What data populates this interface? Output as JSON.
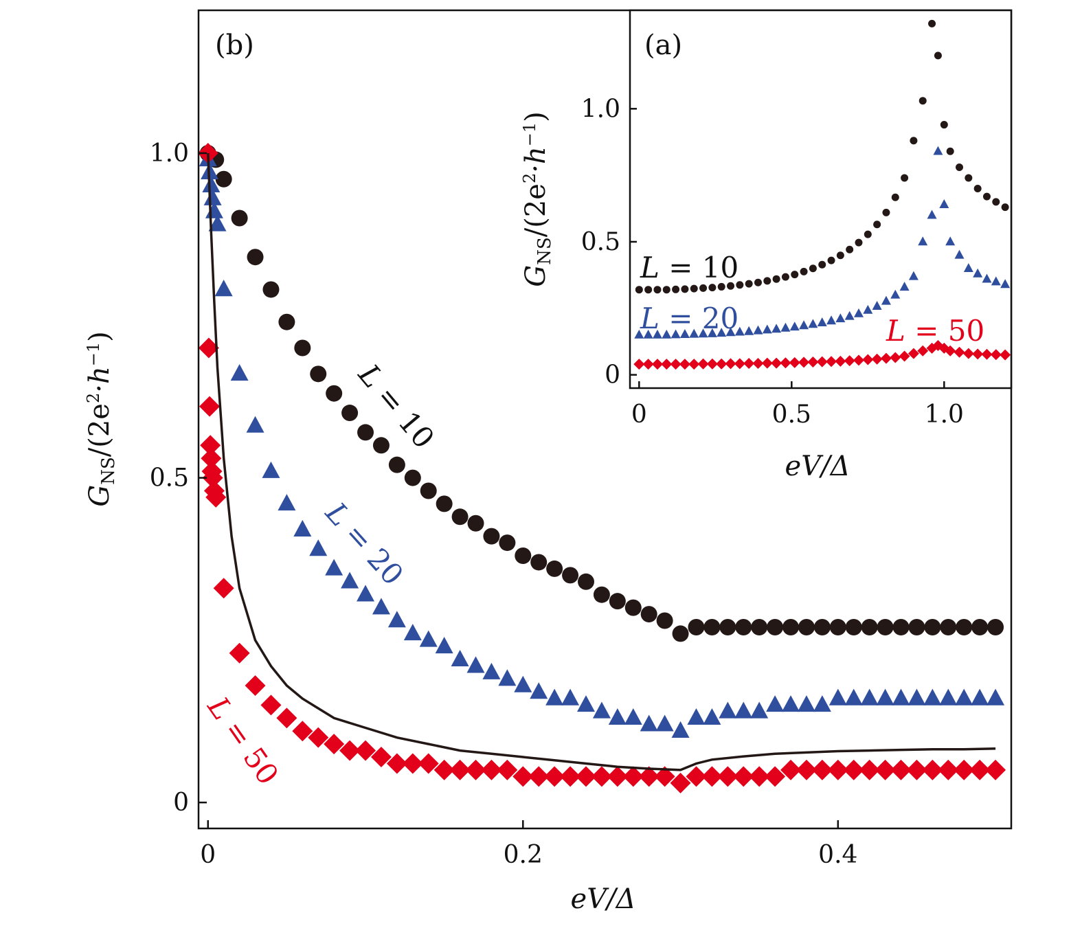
{
  "colors": {
    "L10": "#231815",
    "L20": "#2f4f9e",
    "L50": "#e2001a",
    "axis": "#111111"
  },
  "chart_data": [
    {
      "id": "main",
      "panel_label": "(b)",
      "type": "scatter",
      "xlabel": "eV/Δ",
      "ylabel": "G_NS/(2e²·h⁻¹)",
      "ylabel_parts": {
        "g": "G",
        "sub": "NS",
        "paren": "/(2e",
        "sup2": "2",
        "dot_h": "·h",
        "supm1": "−1",
        "close": ")"
      },
      "xlim": [
        -0.006,
        0.51
      ],
      "ylim": [
        -0.04,
        1.22
      ],
      "xticks": [
        0,
        0.2,
        0.4
      ],
      "xtick_labels": [
        "0",
        "0.2",
        "0.4"
      ],
      "yticks": [
        0,
        0.5,
        1.0
      ],
      "ytick_labels": [
        "0",
        "0.5",
        "1.0"
      ],
      "series": [
        {
          "name": "L = 10",
          "label_name": "L",
          "label_eq": "= 10",
          "marker": "circle",
          "color_key": "L10",
          "x": [
            0,
            0.005,
            0.01,
            0.02,
            0.03,
            0.04,
            0.05,
            0.06,
            0.07,
            0.08,
            0.09,
            0.1,
            0.11,
            0.12,
            0.13,
            0.14,
            0.15,
            0.16,
            0.17,
            0.18,
            0.19,
            0.2,
            0.21,
            0.22,
            0.23,
            0.24,
            0.25,
            0.26,
            0.27,
            0.28,
            0.29,
            0.3,
            0.31,
            0.32,
            0.33,
            0.34,
            0.35,
            0.36,
            0.37,
            0.38,
            0.39,
            0.4,
            0.41,
            0.42,
            0.43,
            0.44,
            0.45,
            0.46,
            0.47,
            0.48,
            0.49,
            0.5
          ],
          "y": [
            1.0,
            0.99,
            0.96,
            0.9,
            0.84,
            0.79,
            0.74,
            0.7,
            0.66,
            0.63,
            0.6,
            0.57,
            0.55,
            0.52,
            0.5,
            0.48,
            0.46,
            0.44,
            0.43,
            0.41,
            0.4,
            0.38,
            0.37,
            0.36,
            0.35,
            0.34,
            0.32,
            0.31,
            0.3,
            0.29,
            0.28,
            0.26,
            0.27,
            0.27,
            0.27,
            0.27,
            0.27,
            0.27,
            0.27,
            0.27,
            0.27,
            0.27,
            0.27,
            0.27,
            0.27,
            0.27,
            0.27,
            0.27,
            0.27,
            0.27,
            0.27,
            0.27
          ]
        },
        {
          "name": "L = 20",
          "label_name": "L",
          "label_eq": "= 20",
          "marker": "triangle",
          "color_key": "L20",
          "x": [
            0,
            0.001,
            0.002,
            0.003,
            0.004,
            0.006,
            0.01,
            0.02,
            0.03,
            0.04,
            0.05,
            0.06,
            0.07,
            0.08,
            0.09,
            0.1,
            0.11,
            0.12,
            0.13,
            0.14,
            0.15,
            0.16,
            0.17,
            0.18,
            0.19,
            0.2,
            0.21,
            0.22,
            0.23,
            0.24,
            0.25,
            0.26,
            0.27,
            0.28,
            0.29,
            0.3,
            0.31,
            0.32,
            0.33,
            0.34,
            0.35,
            0.36,
            0.37,
            0.38,
            0.39,
            0.4,
            0.41,
            0.42,
            0.43,
            0.44,
            0.45,
            0.46,
            0.47,
            0.48,
            0.49,
            0.5
          ],
          "y": [
            0.99,
            0.97,
            0.95,
            0.93,
            0.91,
            0.89,
            0.79,
            0.66,
            0.58,
            0.51,
            0.46,
            0.42,
            0.39,
            0.36,
            0.34,
            0.32,
            0.3,
            0.28,
            0.26,
            0.25,
            0.24,
            0.22,
            0.21,
            0.2,
            0.19,
            0.18,
            0.17,
            0.16,
            0.16,
            0.15,
            0.14,
            0.13,
            0.13,
            0.12,
            0.12,
            0.11,
            0.13,
            0.13,
            0.14,
            0.14,
            0.14,
            0.15,
            0.15,
            0.15,
            0.15,
            0.16,
            0.16,
            0.16,
            0.16,
            0.16,
            0.16,
            0.16,
            0.16,
            0.16,
            0.16,
            0.16
          ]
        },
        {
          "name": "L = 50",
          "label_name": "L",
          "label_eq": "= 50",
          "marker": "diamond",
          "color_key": "L50",
          "x": [
            0,
            0.0005,
            0.001,
            0.0015,
            0.002,
            0.0025,
            0.003,
            0.004,
            0.005,
            0.01,
            0.02,
            0.03,
            0.04,
            0.05,
            0.06,
            0.07,
            0.08,
            0.09,
            0.1,
            0.11,
            0.12,
            0.13,
            0.14,
            0.15,
            0.16,
            0.17,
            0.18,
            0.19,
            0.2,
            0.21,
            0.22,
            0.23,
            0.24,
            0.25,
            0.26,
            0.27,
            0.28,
            0.29,
            0.3,
            0.31,
            0.32,
            0.33,
            0.34,
            0.35,
            0.36,
            0.37,
            0.38,
            0.39,
            0.4,
            0.41,
            0.42,
            0.43,
            0.44,
            0.45,
            0.46,
            0.47,
            0.48,
            0.49,
            0.5
          ],
          "y": [
            1.0,
            0.7,
            0.61,
            0.55,
            0.53,
            0.51,
            0.5,
            0.48,
            0.47,
            0.33,
            0.23,
            0.18,
            0.15,
            0.13,
            0.11,
            0.1,
            0.09,
            0.08,
            0.08,
            0.07,
            0.06,
            0.06,
            0.06,
            0.05,
            0.05,
            0.05,
            0.05,
            0.05,
            0.04,
            0.04,
            0.04,
            0.04,
            0.04,
            0.04,
            0.04,
            0.04,
            0.04,
            0.04,
            0.03,
            0.04,
            0.04,
            0.04,
            0.04,
            0.04,
            0.04,
            0.05,
            0.05,
            0.05,
            0.05,
            0.05,
            0.05,
            0.05,
            0.05,
            0.05,
            0.05,
            0.05,
            0.05,
            0.05,
            0.05
          ]
        },
        {
          "name": "curve",
          "marker": "line",
          "color_key": "L10",
          "x": [
            0,
            0.002,
            0.004,
            0.006,
            0.008,
            0.01,
            0.015,
            0.02,
            0.03,
            0.04,
            0.05,
            0.06,
            0.07,
            0.08,
            0.1,
            0.12,
            0.14,
            0.16,
            0.18,
            0.2,
            0.22,
            0.24,
            0.26,
            0.28,
            0.3,
            0.31,
            0.32,
            0.34,
            0.36,
            0.38,
            0.4,
            0.42,
            0.44,
            0.46,
            0.48,
            0.5
          ],
          "y": [
            1.0,
            0.88,
            0.77,
            0.67,
            0.6,
            0.53,
            0.41,
            0.33,
            0.25,
            0.21,
            0.18,
            0.16,
            0.145,
            0.13,
            0.115,
            0.1,
            0.09,
            0.08,
            0.075,
            0.07,
            0.065,
            0.06,
            0.055,
            0.052,
            0.05,
            0.06,
            0.066,
            0.071,
            0.075,
            0.077,
            0.079,
            0.08,
            0.081,
            0.082,
            0.082,
            0.083
          ]
        }
      ]
    },
    {
      "id": "inset",
      "panel_label": "(a)",
      "type": "scatter",
      "xlabel": "eV/Δ",
      "ylabel": "G_NS/(2e²·h⁻¹)",
      "ylabel_parts": {
        "g": "G",
        "sub": "NS",
        "paren": "/(2e",
        "sup2": "2",
        "dot_h": "·h",
        "supm1": "−1",
        "close": ")"
      },
      "xlim": [
        -0.03,
        1.22
      ],
      "ylim": [
        -0.05,
        1.37
      ],
      "xticks": [
        0,
        0.5,
        1.0
      ],
      "xtick_labels": [
        "0",
        "0.5",
        "1.0"
      ],
      "yticks": [
        0,
        0.5,
        1.0
      ],
      "ytick_labels": [
        "0",
        "0.5",
        "1.0"
      ],
      "series": [
        {
          "name": "L = 10",
          "label_name": "L",
          "label_eq": "= 10",
          "marker": "circle",
          "color_key": "L10",
          "x": [
            0,
            0.03,
            0.06,
            0.09,
            0.12,
            0.15,
            0.18,
            0.21,
            0.24,
            0.27,
            0.3,
            0.33,
            0.36,
            0.39,
            0.42,
            0.45,
            0.48,
            0.51,
            0.54,
            0.57,
            0.6,
            0.63,
            0.66,
            0.69,
            0.72,
            0.75,
            0.78,
            0.81,
            0.84,
            0.87,
            0.9,
            0.93,
            0.96,
            0.98,
            1.0,
            1.02,
            1.05,
            1.08,
            1.11,
            1.14,
            1.17,
            1.2
          ],
          "y": [
            0.32,
            0.32,
            0.32,
            0.32,
            0.321,
            0.322,
            0.324,
            0.326,
            0.328,
            0.331,
            0.334,
            0.338,
            0.342,
            0.347,
            0.353,
            0.36,
            0.368,
            0.377,
            0.388,
            0.4,
            0.414,
            0.43,
            0.449,
            0.471,
            0.497,
            0.528,
            0.565,
            0.61,
            0.667,
            0.74,
            0.88,
            1.03,
            1.32,
            1.2,
            0.94,
            0.84,
            0.78,
            0.74,
            0.7,
            0.67,
            0.65,
            0.63
          ]
        },
        {
          "name": "L = 20",
          "label_name": "L",
          "label_eq": "= 20",
          "marker": "triangle",
          "color_key": "L20",
          "x": [
            0,
            0.03,
            0.06,
            0.09,
            0.12,
            0.15,
            0.18,
            0.21,
            0.24,
            0.27,
            0.3,
            0.33,
            0.36,
            0.39,
            0.42,
            0.45,
            0.48,
            0.51,
            0.54,
            0.57,
            0.6,
            0.63,
            0.66,
            0.69,
            0.72,
            0.75,
            0.78,
            0.81,
            0.84,
            0.87,
            0.9,
            0.93,
            0.96,
            0.98,
            1.0,
            1.02,
            1.05,
            1.08,
            1.11,
            1.14,
            1.17,
            1.2
          ],
          "y": [
            0.15,
            0.15,
            0.15,
            0.15,
            0.151,
            0.152,
            0.153,
            0.154,
            0.155,
            0.157,
            0.159,
            0.161,
            0.163,
            0.166,
            0.169,
            0.172,
            0.176,
            0.18,
            0.185,
            0.19,
            0.196,
            0.203,
            0.211,
            0.22,
            0.23,
            0.243,
            0.258,
            0.277,
            0.3,
            0.33,
            0.37,
            0.5,
            0.6,
            0.84,
            0.64,
            0.5,
            0.45,
            0.4,
            0.38,
            0.36,
            0.35,
            0.34
          ]
        },
        {
          "name": "L = 50",
          "label_name": "L",
          "label_eq": "= 50",
          "marker": "diamond",
          "color_key": "L50",
          "x": [
            0,
            0.03,
            0.06,
            0.09,
            0.12,
            0.15,
            0.18,
            0.21,
            0.24,
            0.27,
            0.3,
            0.33,
            0.36,
            0.39,
            0.42,
            0.45,
            0.48,
            0.51,
            0.54,
            0.57,
            0.6,
            0.63,
            0.66,
            0.69,
            0.72,
            0.75,
            0.78,
            0.81,
            0.84,
            0.87,
            0.9,
            0.93,
            0.96,
            0.98,
            1.0,
            1.02,
            1.05,
            1.08,
            1.11,
            1.14,
            1.17,
            1.2
          ],
          "y": [
            0.04,
            0.04,
            0.04,
            0.04,
            0.04,
            0.04,
            0.04,
            0.041,
            0.041,
            0.041,
            0.042,
            0.042,
            0.043,
            0.043,
            0.044,
            0.044,
            0.045,
            0.046,
            0.047,
            0.048,
            0.049,
            0.05,
            0.051,
            0.053,
            0.055,
            0.057,
            0.059,
            0.062,
            0.065,
            0.07,
            0.08,
            0.09,
            0.1,
            0.11,
            0.1,
            0.09,
            0.085,
            0.08,
            0.078,
            0.077,
            0.076,
            0.075
          ]
        }
      ]
    }
  ]
}
